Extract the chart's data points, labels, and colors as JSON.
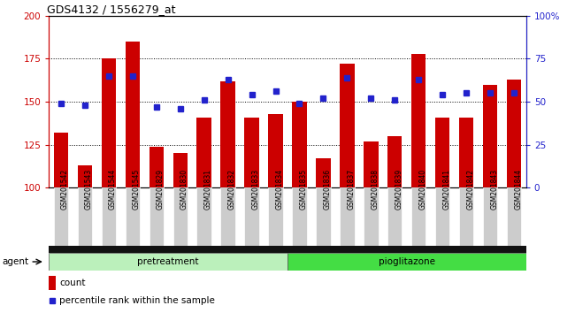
{
  "title": "GDS4132 / 1556279_at",
  "samples": [
    "GSM201542",
    "GSM201543",
    "GSM201544",
    "GSM201545",
    "GSM201829",
    "GSM201830",
    "GSM201831",
    "GSM201832",
    "GSM201833",
    "GSM201834",
    "GSM201835",
    "GSM201836",
    "GSM201837",
    "GSM201838",
    "GSM201839",
    "GSM201840",
    "GSM201841",
    "GSM201842",
    "GSM201843",
    "GSM201844"
  ],
  "counts": [
    132,
    113,
    175,
    185,
    124,
    120,
    141,
    162,
    141,
    143,
    150,
    117,
    172,
    127,
    130,
    178,
    141,
    141,
    160,
    163
  ],
  "percentiles": [
    49,
    48,
    65,
    65,
    47,
    46,
    51,
    63,
    54,
    56,
    49,
    52,
    64,
    52,
    51,
    63,
    54,
    55,
    55,
    55
  ],
  "pretreatment_count": 10,
  "pioglitazone_count": 10,
  "ylim_left": [
    100,
    200
  ],
  "ylim_right": [
    0,
    100
  ],
  "yticks_left": [
    100,
    125,
    150,
    175,
    200
  ],
  "yticks_right": [
    0,
    25,
    50,
    75,
    100
  ],
  "ytick_labels_right": [
    "0",
    "25",
    "50",
    "75",
    "100%"
  ],
  "bar_color": "#cc0000",
  "dot_color": "#2222cc",
  "pretreatment_color": "#bbf0bb",
  "pioglitazone_color": "#44dd44",
  "tick_label_bg": "#cccccc",
  "bar_bottom": 100,
  "legend_count_label": "count",
  "legend_pct_label": "percentile rank within the sample",
  "agent_label": "agent"
}
